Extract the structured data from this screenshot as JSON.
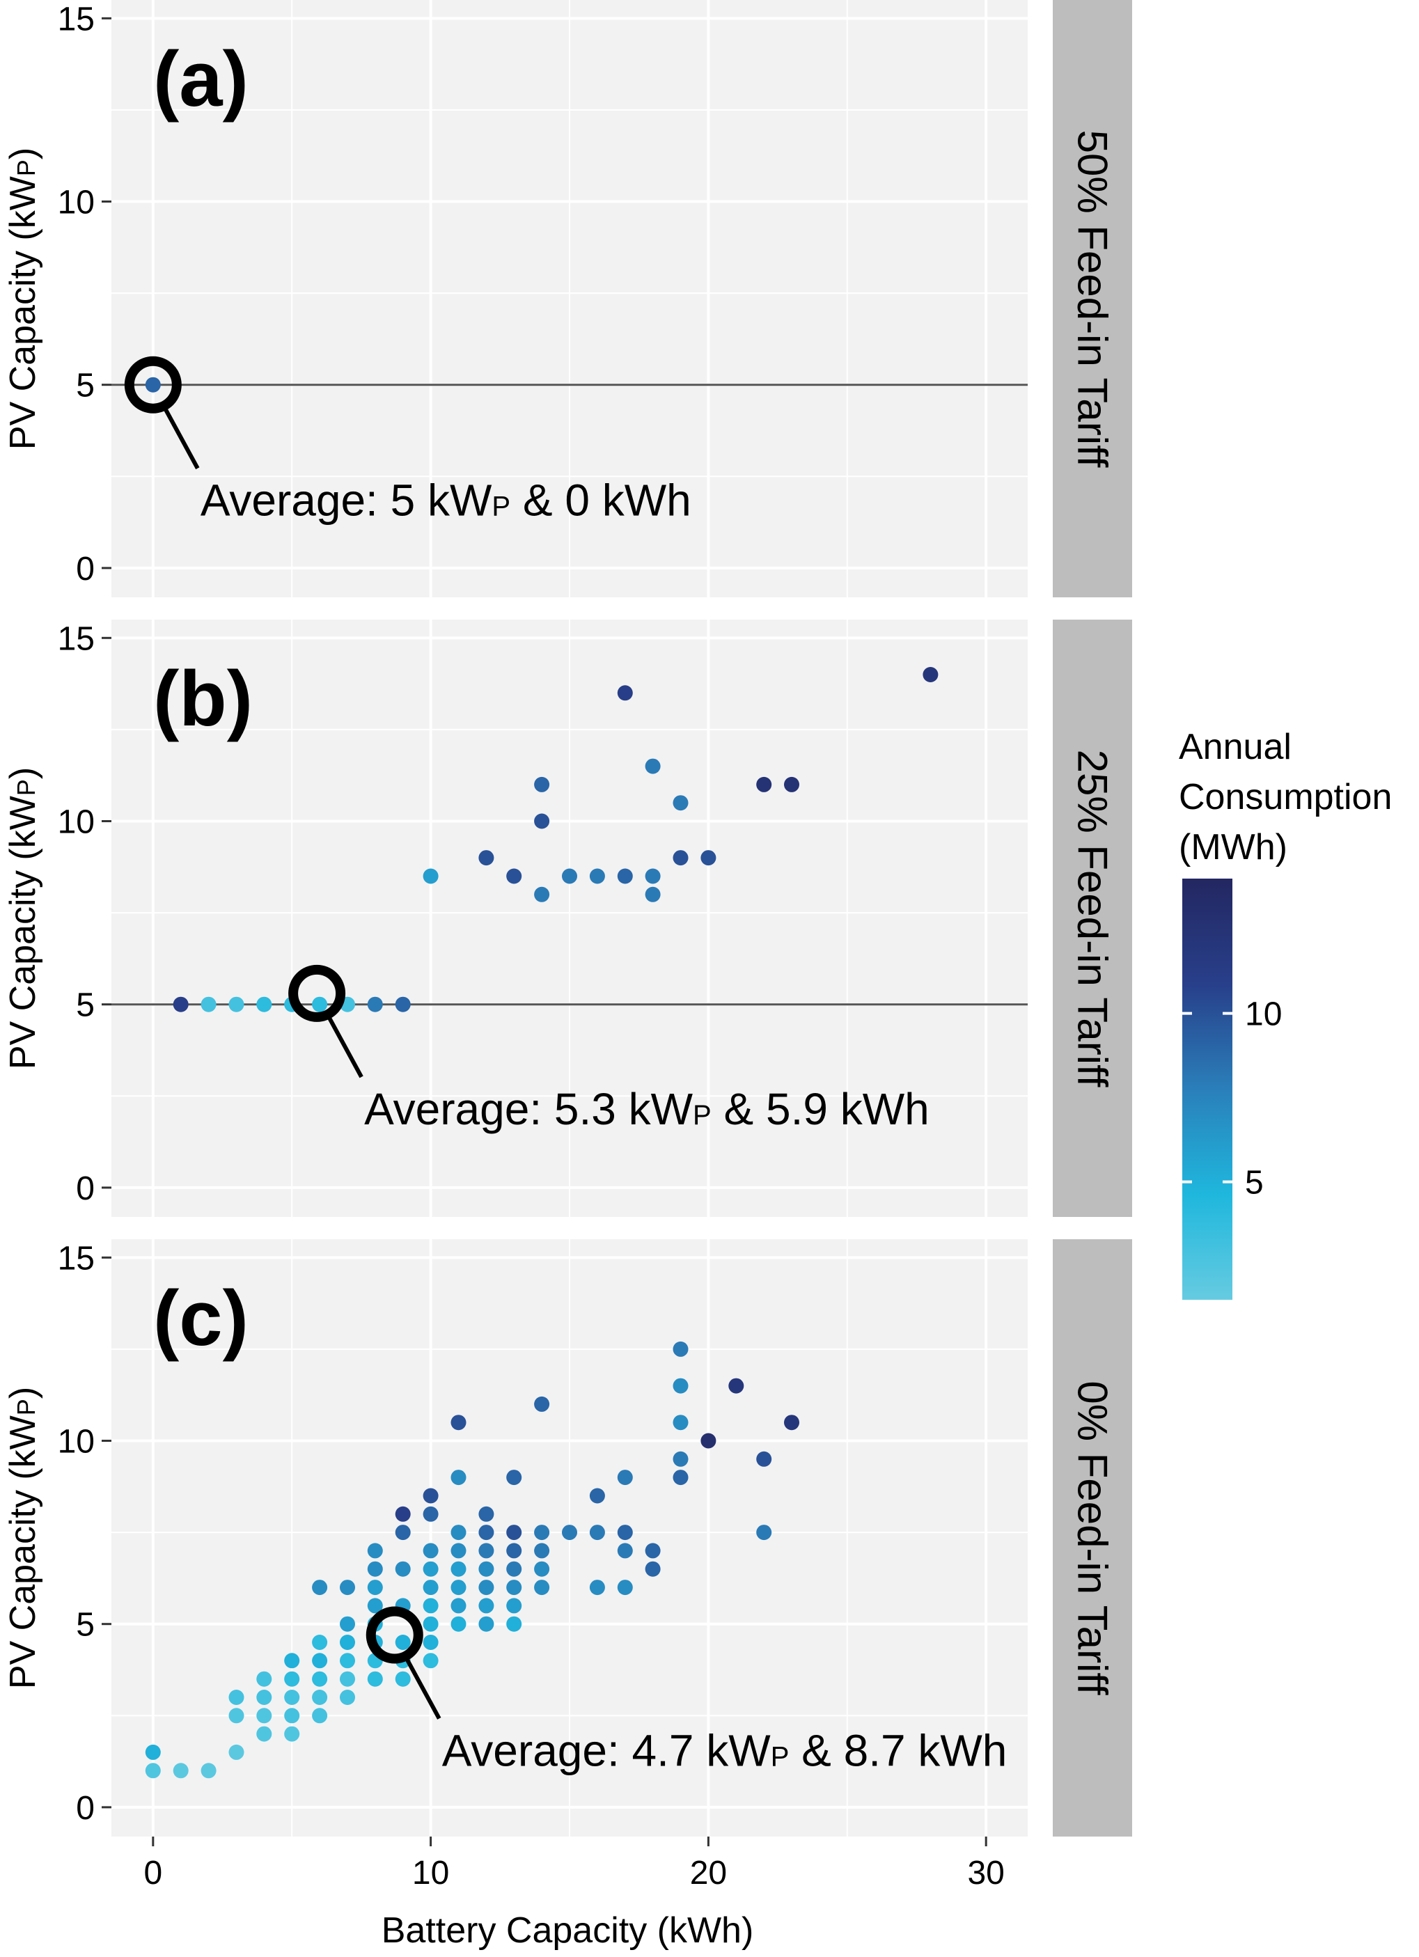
{
  "chart_data": {
    "type": "scatter",
    "xlabel": "Battery Capacity (kWh)",
    "ylabel": "PV Capacity (kWP)",
    "ylabel_main": "PV Capacity (kW",
    "ylabel_sub": "P",
    "ylabel_end": ")",
    "xlim": [
      -1.5,
      31.5
    ],
    "ylim": [
      -0.8,
      15.5
    ],
    "x_ticks": [
      0,
      10,
      20,
      30
    ],
    "y_ticks": [
      0,
      5,
      10,
      15
    ],
    "legend": {
      "title_lines": [
        "Annual",
        "Consumption",
        "(MWh)"
      ],
      "min": 1.5,
      "max": 14,
      "ticks": [
        5,
        10
      ],
      "colors": [
        "#66cbe1",
        "#1fb7dd",
        "#2a7fba",
        "#283f8a",
        "#232761"
      ]
    },
    "panels": [
      {
        "tag": "(a)",
        "strip": "50% Feed-in Tariff",
        "average_pv": 5,
        "average_battery": 0,
        "average_text": {
          "prefix": "Average: 5 kW",
          "sub": "P",
          "suffix": " & 0 kWh"
        },
        "points": [
          [
            0,
            5,
            9
          ]
        ]
      },
      {
        "tag": "(b)",
        "strip": "25% Feed-in Tariff",
        "average_pv": 5.3,
        "average_battery": 5.9,
        "average_text": {
          "prefix": "Average: 5.3 kW",
          "sub": "P",
          "suffix": " & 5.9 kWh"
        },
        "points": [
          [
            1,
            5,
            11
          ],
          [
            2,
            5,
            3
          ],
          [
            3,
            5,
            3
          ],
          [
            4,
            5,
            4
          ],
          [
            5,
            5,
            4
          ],
          [
            6,
            5,
            4
          ],
          [
            7,
            5,
            3
          ],
          [
            8,
            5,
            8
          ],
          [
            9,
            5,
            9
          ],
          [
            10,
            8.5,
            6
          ],
          [
            12,
            9,
            10
          ],
          [
            13,
            8.5,
            10
          ],
          [
            14,
            11,
            9
          ],
          [
            14,
            10,
            10
          ],
          [
            14,
            8,
            8
          ],
          [
            15,
            8.5,
            8
          ],
          [
            16,
            8.5,
            8
          ],
          [
            17,
            13.5,
            11
          ],
          [
            17,
            8.5,
            9
          ],
          [
            18,
            11.5,
            8
          ],
          [
            18,
            8.5,
            8
          ],
          [
            18,
            8,
            8
          ],
          [
            19,
            10.5,
            8
          ],
          [
            19,
            9,
            10
          ],
          [
            20,
            9,
            10
          ],
          [
            22,
            11,
            12.5
          ],
          [
            23,
            11,
            12.5
          ],
          [
            28,
            14,
            12
          ]
        ]
      },
      {
        "tag": "(c)",
        "strip": "0% Feed-in Tariff",
        "average_pv": 4.7,
        "average_battery": 8.7,
        "average_text": {
          "prefix": "Average: 4.7 kW",
          "sub": "P",
          "suffix": " & 8.7 kWh"
        },
        "points": [
          [
            0,
            1.5,
            5
          ],
          [
            0,
            1,
            2.5
          ],
          [
            1,
            1,
            2
          ],
          [
            2,
            1,
            2
          ],
          [
            3,
            3,
            3
          ],
          [
            3,
            2.5,
            2.5
          ],
          [
            3,
            1.5,
            2
          ],
          [
            4,
            3.5,
            3
          ],
          [
            4,
            3,
            3
          ],
          [
            4,
            2.5,
            2.5
          ],
          [
            4,
            2,
            2.5
          ],
          [
            5,
            4,
            5
          ],
          [
            5,
            3.5,
            4
          ],
          [
            5,
            3,
            3
          ],
          [
            5,
            2.5,
            3
          ],
          [
            5,
            2,
            2.5
          ],
          [
            6,
            6,
            7
          ],
          [
            6,
            4.5,
            4
          ],
          [
            6,
            4,
            5
          ],
          [
            6,
            3.5,
            4
          ],
          [
            6,
            3,
            3
          ],
          [
            6,
            2.5,
            3
          ],
          [
            7,
            6,
            7
          ],
          [
            7,
            5,
            6
          ],
          [
            7,
            4.5,
            5
          ],
          [
            7,
            4,
            4
          ],
          [
            7,
            3.5,
            3
          ],
          [
            7,
            3,
            3
          ],
          [
            8,
            7,
            7
          ],
          [
            8,
            6.5,
            7
          ],
          [
            8,
            6,
            6
          ],
          [
            8,
            5.5,
            6
          ],
          [
            8,
            5,
            5
          ],
          [
            8,
            4.5,
            5
          ],
          [
            8,
            4,
            4
          ],
          [
            8,
            3.5,
            4
          ],
          [
            9,
            8,
            11
          ],
          [
            9,
            7.5,
            9
          ],
          [
            9,
            6.5,
            7
          ],
          [
            9,
            5.5,
            6
          ],
          [
            9,
            4.5,
            5
          ],
          [
            9,
            4,
            4
          ],
          [
            9,
            3.5,
            4
          ],
          [
            10,
            8.5,
            10
          ],
          [
            10,
            8,
            9
          ],
          [
            10,
            7,
            7
          ],
          [
            10,
            6.5,
            6
          ],
          [
            10,
            6,
            6
          ],
          [
            10,
            5.5,
            5
          ],
          [
            10,
            5,
            5
          ],
          [
            10,
            4.5,
            5
          ],
          [
            10,
            4,
            4
          ],
          [
            11,
            10.5,
            10
          ],
          [
            11,
            9,
            7
          ],
          [
            11,
            7.5,
            7
          ],
          [
            11,
            7,
            7
          ],
          [
            11,
            6.5,
            6
          ],
          [
            11,
            6,
            6
          ],
          [
            11,
            5.5,
            6
          ],
          [
            11,
            5,
            5
          ],
          [
            12,
            8,
            9
          ],
          [
            12,
            7.5,
            9
          ],
          [
            12,
            7,
            8
          ],
          [
            12,
            6.5,
            7
          ],
          [
            12,
            6,
            7
          ],
          [
            12,
            5.5,
            6
          ],
          [
            12,
            5,
            6
          ],
          [
            13,
            9,
            9
          ],
          [
            13,
            7.5,
            10
          ],
          [
            13,
            7,
            9
          ],
          [
            13,
            6.5,
            8
          ],
          [
            13,
            6,
            7
          ],
          [
            13,
            5.5,
            6
          ],
          [
            13,
            5,
            5
          ],
          [
            14,
            11,
            9
          ],
          [
            14,
            7.5,
            8
          ],
          [
            14,
            7,
            8
          ],
          [
            14,
            6.5,
            7
          ],
          [
            14,
            6,
            7
          ],
          [
            15,
            7.5,
            8
          ],
          [
            16,
            8.5,
            9
          ],
          [
            16,
            7.5,
            8
          ],
          [
            16,
            6,
            7
          ],
          [
            17,
            9,
            8
          ],
          [
            17,
            7.5,
            9
          ],
          [
            17,
            7,
            8
          ],
          [
            17,
            6,
            7
          ],
          [
            18,
            7,
            9
          ],
          [
            18,
            6.5,
            9
          ],
          [
            19,
            12.5,
            8
          ],
          [
            19,
            11.5,
            7
          ],
          [
            19,
            10.5,
            7
          ],
          [
            19,
            9.5,
            8
          ],
          [
            19,
            9,
            9
          ],
          [
            20,
            10,
            13
          ],
          [
            21,
            11.5,
            12
          ],
          [
            22,
            9.5,
            10
          ],
          [
            22,
            7.5,
            8
          ],
          [
            23,
            10.5,
            12
          ]
        ]
      }
    ]
  }
}
